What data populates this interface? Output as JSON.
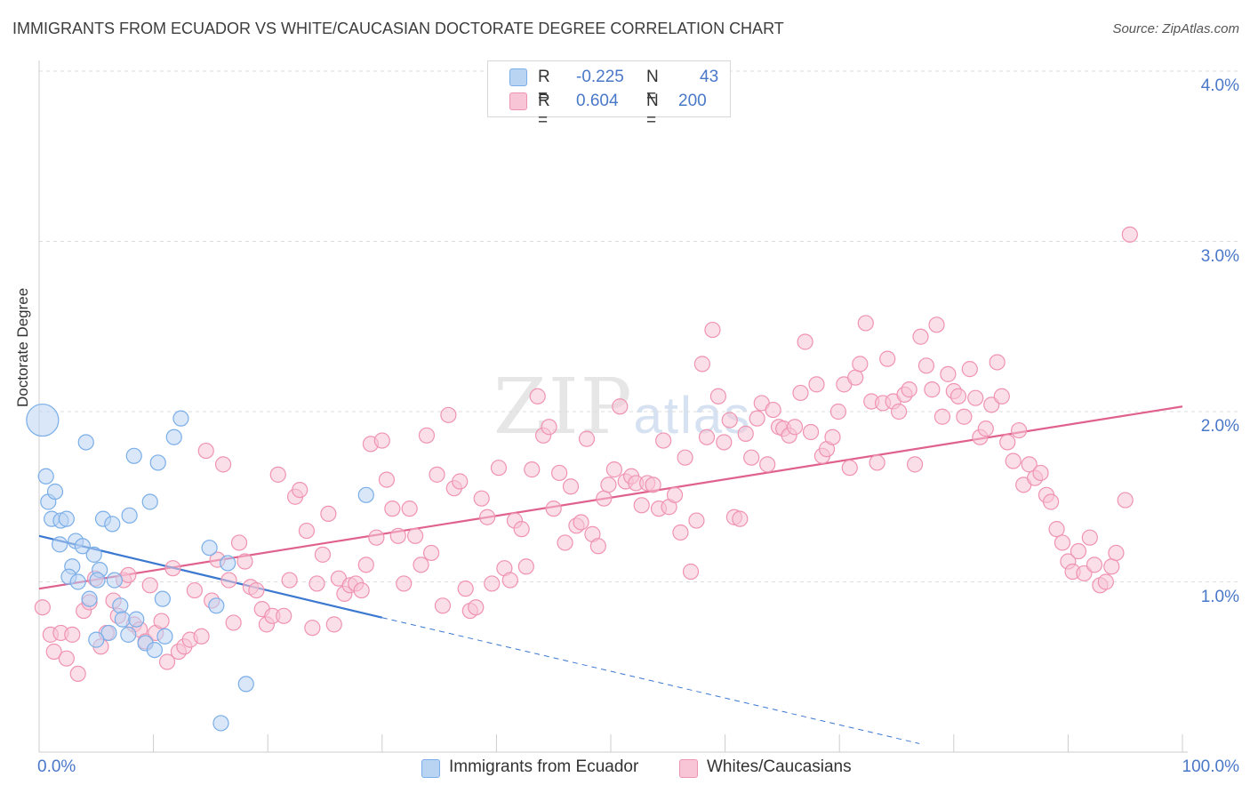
{
  "title": "IMMIGRANTS FROM ECUADOR VS WHITE/CAUCASIAN DOCTORATE DEGREE CORRELATION CHART",
  "source": "Source: ZipAtlas.com",
  "watermark": {
    "zip": "ZIP",
    "atlas": "atlas"
  },
  "colors": {
    "blue": "#7aaee8",
    "blue_fill": "#b9d4f3",
    "blue_line": "#3b78d0",
    "pink": "#ef93b1",
    "pink_fill": "#f7c5d5",
    "pink_line": "#e0608e",
    "tick_text": "#4a78c9"
  },
  "legend": {
    "rows": [
      {
        "r_label": "R =",
        "r_value": "-0.225",
        "n_label": "N =",
        "n_value": "43"
      },
      {
        "r_label": "R =",
        "r_value": "0.604",
        "n_label": "N =",
        "n_value": "200"
      }
    ]
  },
  "bottom_legend": [
    "Immigrants from Ecuador",
    "Whites/Caucasians"
  ],
  "chart_data": {
    "type": "scatter",
    "title": "IMMIGRANTS FROM ECUADOR VS WHITE/CAUCASIAN DOCTORATE DEGREE CORRELATION CHART",
    "xlabel": "",
    "ylabel": "Doctorate Degree",
    "xlim": [
      0,
      100
    ],
    "ylim": [
      0,
      4.2
    ],
    "x_tick_labels": [
      "0.0%",
      "100.0%"
    ],
    "y_ticks": [
      1.0,
      2.0,
      3.0,
      4.0
    ],
    "y_tick_labels": [
      "1.0%",
      "2.0%",
      "3.0%",
      "4.0%"
    ],
    "grid": true,
    "series": [
      {
        "name": "Immigrants from Ecuador",
        "R": -0.225,
        "N": 43,
        "trend": {
          "x_solid": [
            0,
            30
          ],
          "y_solid": [
            1.27,
            0.79
          ],
          "x_dashed": [
            30,
            77
          ],
          "y_dashed": [
            0.79,
            0.05
          ]
        },
        "points": [
          [
            0.3,
            1.95
          ],
          [
            0.6,
            1.62
          ],
          [
            0.8,
            1.47
          ],
          [
            1.4,
            1.53
          ],
          [
            1.1,
            1.37
          ],
          [
            1.9,
            1.36
          ],
          [
            2.4,
            1.37
          ],
          [
            4.1,
            1.82
          ],
          [
            1.8,
            1.22
          ],
          [
            3.2,
            1.24
          ],
          [
            3.8,
            1.21
          ],
          [
            4.8,
            1.16
          ],
          [
            2.9,
            1.09
          ],
          [
            2.6,
            1.03
          ],
          [
            3.4,
            1.0
          ],
          [
            5.3,
            1.07
          ],
          [
            5.1,
            1.01
          ],
          [
            6.6,
            1.01
          ],
          [
            5.6,
            1.37
          ],
          [
            6.4,
            1.34
          ],
          [
            7.9,
            1.39
          ],
          [
            8.3,
            1.74
          ],
          [
            9.7,
            1.47
          ],
          [
            10.4,
            1.7
          ],
          [
            11.8,
            1.85
          ],
          [
            12.4,
            1.96
          ],
          [
            4.4,
            0.9
          ],
          [
            7.1,
            0.86
          ],
          [
            7.3,
            0.78
          ],
          [
            8.5,
            0.78
          ],
          [
            6.1,
            0.7
          ],
          [
            5.0,
            0.66
          ],
          [
            7.8,
            0.69
          ],
          [
            9.3,
            0.64
          ],
          [
            10.1,
            0.6
          ],
          [
            11.0,
            0.68
          ],
          [
            10.8,
            0.9
          ],
          [
            14.9,
            1.2
          ],
          [
            16.5,
            1.11
          ],
          [
            15.5,
            0.86
          ],
          [
            28.6,
            1.51
          ],
          [
            18.1,
            0.4
          ],
          [
            15.9,
            0.17
          ]
        ]
      },
      {
        "name": "Whites/Caucasians",
        "R": 0.604,
        "N": 200,
        "trend": {
          "x": [
            0,
            100
          ],
          "y": [
            0.96,
            2.03
          ]
        },
        "points": [
          [
            0.3,
            0.85
          ],
          [
            1.0,
            0.69
          ],
          [
            1.3,
            0.59
          ],
          [
            1.9,
            0.7
          ],
          [
            2.4,
            0.55
          ],
          [
            2.9,
            0.69
          ],
          [
            3.4,
            0.46
          ],
          [
            3.9,
            0.83
          ],
          [
            4.4,
            0.88
          ],
          [
            4.9,
            1.02
          ],
          [
            5.4,
            0.62
          ],
          [
            5.9,
            0.7
          ],
          [
            6.5,
            0.89
          ],
          [
            6.9,
            0.8
          ],
          [
            7.4,
            1.01
          ],
          [
            7.8,
            1.04
          ],
          [
            8.3,
            0.75
          ],
          [
            8.8,
            0.72
          ],
          [
            9.3,
            0.65
          ],
          [
            9.7,
            0.98
          ],
          [
            10.2,
            0.7
          ],
          [
            10.7,
            0.77
          ],
          [
            11.2,
            0.53
          ],
          [
            11.7,
            1.08
          ],
          [
            12.2,
            0.59
          ],
          [
            12.7,
            0.62
          ],
          [
            13.2,
            0.66
          ],
          [
            13.6,
            0.95
          ],
          [
            14.2,
            0.68
          ],
          [
            14.6,
            1.77
          ],
          [
            15.1,
            0.89
          ],
          [
            15.6,
            1.13
          ],
          [
            16.1,
            1.69
          ],
          [
            16.6,
            1.01
          ],
          [
            17.0,
            0.76
          ],
          [
            17.5,
            1.23
          ],
          [
            18.0,
            1.12
          ],
          [
            18.5,
            0.97
          ],
          [
            19.0,
            0.95
          ],
          [
            19.5,
            0.84
          ],
          [
            19.9,
            0.75
          ],
          [
            20.4,
            0.8
          ],
          [
            20.9,
            1.63
          ],
          [
            21.4,
            0.8
          ],
          [
            21.9,
            1.01
          ],
          [
            22.4,
            1.5
          ],
          [
            22.8,
            1.54
          ],
          [
            23.4,
            1.3
          ],
          [
            23.9,
            0.73
          ],
          [
            24.3,
            0.99
          ],
          [
            24.8,
            1.16
          ],
          [
            25.3,
            1.4
          ],
          [
            25.8,
            0.75
          ],
          [
            26.2,
            1.02
          ],
          [
            26.7,
            0.93
          ],
          [
            27.2,
            0.98
          ],
          [
            27.7,
            0.99
          ],
          [
            28.2,
            0.95
          ],
          [
            28.6,
            1.1
          ],
          [
            29.0,
            1.81
          ],
          [
            29.5,
            1.26
          ],
          [
            30.0,
            1.83
          ],
          [
            30.4,
            1.6
          ],
          [
            30.9,
            1.43
          ],
          [
            31.4,
            1.27
          ],
          [
            31.9,
            0.99
          ],
          [
            32.4,
            1.43
          ],
          [
            32.9,
            1.27
          ],
          [
            33.4,
            1.1
          ],
          [
            33.9,
            1.86
          ],
          [
            34.3,
            1.17
          ],
          [
            34.8,
            1.63
          ],
          [
            35.3,
            0.86
          ],
          [
            35.8,
            1.98
          ],
          [
            36.3,
            1.55
          ],
          [
            36.8,
            1.59
          ],
          [
            37.3,
            0.96
          ],
          [
            37.7,
            0.83
          ],
          [
            38.2,
            0.85
          ],
          [
            38.7,
            1.49
          ],
          [
            39.2,
            1.38
          ],
          [
            39.6,
            0.99
          ],
          [
            40.2,
            1.67
          ],
          [
            40.7,
            1.08
          ],
          [
            41.2,
            1.01
          ],
          [
            41.6,
            1.36
          ],
          [
            42.2,
            1.31
          ],
          [
            42.6,
            1.09
          ],
          [
            43.1,
            1.66
          ],
          [
            43.6,
            2.09
          ],
          [
            44.1,
            1.86
          ],
          [
            44.6,
            1.91
          ],
          [
            45.0,
            1.43
          ],
          [
            45.5,
            1.64
          ],
          [
            46.0,
            1.23
          ],
          [
            46.5,
            1.56
          ],
          [
            47.0,
            1.33
          ],
          [
            47.4,
            1.35
          ],
          [
            47.9,
            1.84
          ],
          [
            48.4,
            1.28
          ],
          [
            48.9,
            1.21
          ],
          [
            49.4,
            1.49
          ],
          [
            49.8,
            1.57
          ],
          [
            50.3,
            1.66
          ],
          [
            50.8,
            2.03
          ],
          [
            51.3,
            1.59
          ],
          [
            51.8,
            1.62
          ],
          [
            52.2,
            1.58
          ],
          [
            52.7,
            1.45
          ],
          [
            53.2,
            1.58
          ],
          [
            53.7,
            1.57
          ],
          [
            54.2,
            1.43
          ],
          [
            54.6,
            1.83
          ],
          [
            55.1,
            1.44
          ],
          [
            55.6,
            1.51
          ],
          [
            56.1,
            1.29
          ],
          [
            56.5,
            1.73
          ],
          [
            57.0,
            1.06
          ],
          [
            57.5,
            1.36
          ],
          [
            58.0,
            2.28
          ],
          [
            58.4,
            1.85
          ],
          [
            58.9,
            2.48
          ],
          [
            59.4,
            2.09
          ],
          [
            59.9,
            1.82
          ],
          [
            60.4,
            1.95
          ],
          [
            60.8,
            1.38
          ],
          [
            61.3,
            1.37
          ],
          [
            61.8,
            1.87
          ],
          [
            62.3,
            1.73
          ],
          [
            62.8,
            1.96
          ],
          [
            63.2,
            2.05
          ],
          [
            63.7,
            1.69
          ],
          [
            64.2,
            2.01
          ],
          [
            64.7,
            1.91
          ],
          [
            65.1,
            1.9
          ],
          [
            65.6,
            1.86
          ],
          [
            66.1,
            1.91
          ],
          [
            66.6,
            2.11
          ],
          [
            67.0,
            2.41
          ],
          [
            67.5,
            1.88
          ],
          [
            68.0,
            2.16
          ],
          [
            68.5,
            1.74
          ],
          [
            68.9,
            1.78
          ],
          [
            69.4,
            1.85
          ],
          [
            69.9,
            2.0
          ],
          [
            70.4,
            2.16
          ],
          [
            70.9,
            1.67
          ],
          [
            71.4,
            2.2
          ],
          [
            71.8,
            2.28
          ],
          [
            72.3,
            2.52
          ],
          [
            72.8,
            2.06
          ],
          [
            73.3,
            1.7
          ],
          [
            73.8,
            2.05
          ],
          [
            74.2,
            2.31
          ],
          [
            74.7,
            2.06
          ],
          [
            75.2,
            2.0
          ],
          [
            75.7,
            2.1
          ],
          [
            76.1,
            2.13
          ],
          [
            76.6,
            1.69
          ],
          [
            77.1,
            2.44
          ],
          [
            77.6,
            2.27
          ],
          [
            78.1,
            2.13
          ],
          [
            78.5,
            2.51
          ],
          [
            79.0,
            1.97
          ],
          [
            79.5,
            2.22
          ],
          [
            80.0,
            2.12
          ],
          [
            80.4,
            2.09
          ],
          [
            80.9,
            1.97
          ],
          [
            81.4,
            2.25
          ],
          [
            81.9,
            2.08
          ],
          [
            82.3,
            1.85
          ],
          [
            82.8,
            1.9
          ],
          [
            83.3,
            2.04
          ],
          [
            83.8,
            2.29
          ],
          [
            84.2,
            2.09
          ],
          [
            84.7,
            1.82
          ],
          [
            85.2,
            1.71
          ],
          [
            85.7,
            1.89
          ],
          [
            86.1,
            1.57
          ],
          [
            86.6,
            1.69
          ],
          [
            87.1,
            1.61
          ],
          [
            87.6,
            1.64
          ],
          [
            88.1,
            1.51
          ],
          [
            88.5,
            1.47
          ],
          [
            89.0,
            1.31
          ],
          [
            89.5,
            1.23
          ],
          [
            90.0,
            1.12
          ],
          [
            90.4,
            1.06
          ],
          [
            90.9,
            1.18
          ],
          [
            91.4,
            1.05
          ],
          [
            91.9,
            1.26
          ],
          [
            92.3,
            1.1
          ],
          [
            92.8,
            0.98
          ],
          [
            93.3,
            1.0
          ],
          [
            93.8,
            1.09
          ],
          [
            94.2,
            1.17
          ],
          [
            95.0,
            1.48
          ],
          [
            95.4,
            3.04
          ]
        ]
      }
    ]
  }
}
